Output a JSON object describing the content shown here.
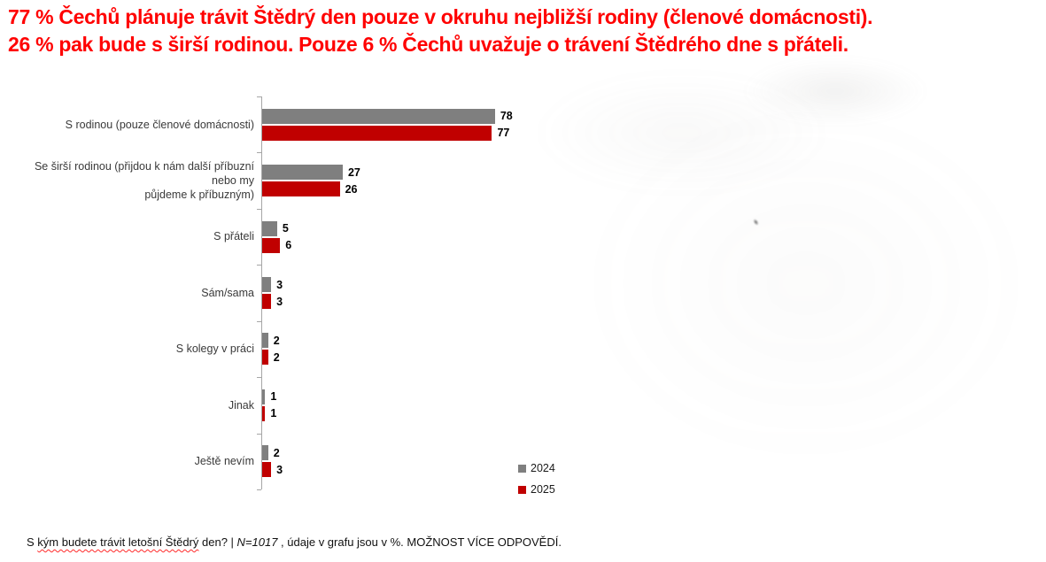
{
  "header": {
    "line1": "77 % Čechů plánuje trávit Štědrý den pouze v okruhu nejbližší rodiny (členové domácnosti).",
    "line2": "26 % pak bude s širší rodinou. Pouze 6 % Čechů uvažuje o trávení Štědrého dne s přáteli.",
    "color": "#ff0000"
  },
  "chart_data": {
    "type": "bar",
    "orientation": "horizontal",
    "title": "",
    "categories": [
      "S rodinou (pouze členové domácnosti)",
      "Se širší rodinou (přijdou k nám další příbuzní nebo my\npůjdeme k příbuzným)",
      "S přáteli",
      "Sám/sama",
      "S kolegy v práci",
      "Jinak",
      "Ještě nevím"
    ],
    "series": [
      {
        "name": "2024",
        "color": "#7f7f7f",
        "values": [
          78,
          27,
          5,
          3,
          2,
          1,
          2
        ]
      },
      {
        "name": "2025",
        "color": "#c00000",
        "values": [
          77,
          26,
          6,
          3,
          2,
          1,
          3
        ]
      }
    ],
    "value_unit": "%",
    "xlim": [
      0,
      100
    ],
    "grid": false,
    "data_labels": true,
    "legend_position": "bottom-right",
    "axis_color": "#a6a6a6"
  },
  "footer": {
    "prefix": "S ",
    "spellcheck_phrase": "kým budete trávit letošní Štědrý",
    "mid": " den? | ",
    "sample": "N=1017",
    "suffix": " , údaje v grafu jsou v %. MOŽNOST VÍCE ODPOVĚDÍ."
  }
}
